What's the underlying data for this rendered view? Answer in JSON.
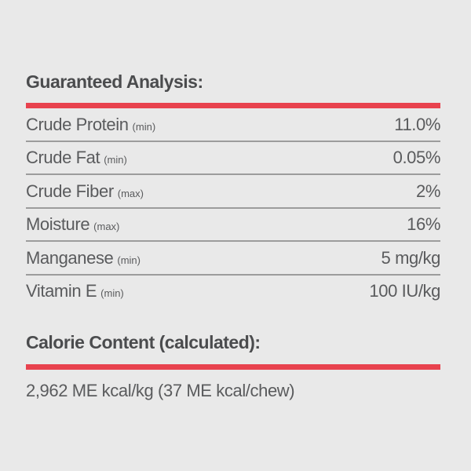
{
  "theme": {
    "background": "#e9e9e9",
    "accent_red": "#e8424e",
    "heading_color": "#4b4c4e",
    "body_text_color": "#5a5b5d",
    "separator_color": "#9c9c9c"
  },
  "guaranteed_analysis": {
    "title": "Guaranteed Analysis:",
    "rows": [
      {
        "label": "Crude Protein",
        "qualifier": "(min)",
        "value": "11.0%"
      },
      {
        "label": "Crude Fat",
        "qualifier": "(min)",
        "value": "0.05%"
      },
      {
        "label": "Crude Fiber",
        "qualifier": "(max)",
        "value": "2%"
      },
      {
        "label": "Moisture",
        "qualifier": "(max)",
        "value": "16%"
      },
      {
        "label": "Manganese",
        "qualifier": "(min)",
        "value": "5 mg/kg"
      },
      {
        "label": "Vitamin E",
        "qualifier": "(min)",
        "value": "100 IU/kg"
      }
    ]
  },
  "calorie_content": {
    "title": "Calorie Content (calculated):",
    "value": "2,962 ME kcal/kg (37 ME kcal/chew)"
  }
}
